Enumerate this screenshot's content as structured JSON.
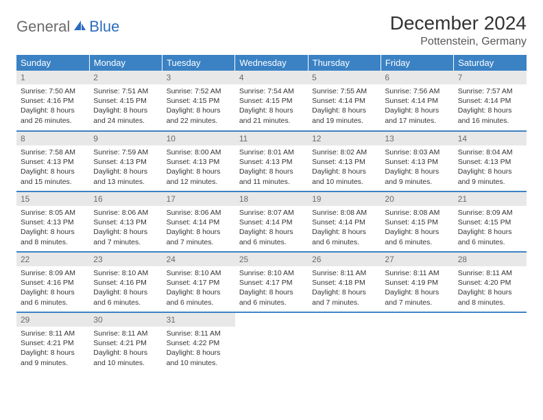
{
  "brand": {
    "part1": "General",
    "part2": "Blue"
  },
  "title": "December 2024",
  "location": "Pottenstein, Germany",
  "colors": {
    "header_bg": "#3b82c4",
    "header_fg": "#ffffff",
    "daynum_bg": "#e8e8e8",
    "daynum_fg": "#6a6a6a",
    "row_border": "#3b82c4",
    "logo_gray": "#6a6a6a",
    "logo_blue": "#2b6bbf"
  },
  "weekdays": [
    "Sunday",
    "Monday",
    "Tuesday",
    "Wednesday",
    "Thursday",
    "Friday",
    "Saturday"
  ],
  "days": [
    {
      "n": 1,
      "sunrise": "7:50 AM",
      "sunset": "4:16 PM",
      "daylight": "8 hours and 26 minutes."
    },
    {
      "n": 2,
      "sunrise": "7:51 AM",
      "sunset": "4:15 PM",
      "daylight": "8 hours and 24 minutes."
    },
    {
      "n": 3,
      "sunrise": "7:52 AM",
      "sunset": "4:15 PM",
      "daylight": "8 hours and 22 minutes."
    },
    {
      "n": 4,
      "sunrise": "7:54 AM",
      "sunset": "4:15 PM",
      "daylight": "8 hours and 21 minutes."
    },
    {
      "n": 5,
      "sunrise": "7:55 AM",
      "sunset": "4:14 PM",
      "daylight": "8 hours and 19 minutes."
    },
    {
      "n": 6,
      "sunrise": "7:56 AM",
      "sunset": "4:14 PM",
      "daylight": "8 hours and 17 minutes."
    },
    {
      "n": 7,
      "sunrise": "7:57 AM",
      "sunset": "4:14 PM",
      "daylight": "8 hours and 16 minutes."
    },
    {
      "n": 8,
      "sunrise": "7:58 AM",
      "sunset": "4:13 PM",
      "daylight": "8 hours and 15 minutes."
    },
    {
      "n": 9,
      "sunrise": "7:59 AM",
      "sunset": "4:13 PM",
      "daylight": "8 hours and 13 minutes."
    },
    {
      "n": 10,
      "sunrise": "8:00 AM",
      "sunset": "4:13 PM",
      "daylight": "8 hours and 12 minutes."
    },
    {
      "n": 11,
      "sunrise": "8:01 AM",
      "sunset": "4:13 PM",
      "daylight": "8 hours and 11 minutes."
    },
    {
      "n": 12,
      "sunrise": "8:02 AM",
      "sunset": "4:13 PM",
      "daylight": "8 hours and 10 minutes."
    },
    {
      "n": 13,
      "sunrise": "8:03 AM",
      "sunset": "4:13 PM",
      "daylight": "8 hours and 9 minutes."
    },
    {
      "n": 14,
      "sunrise": "8:04 AM",
      "sunset": "4:13 PM",
      "daylight": "8 hours and 9 minutes."
    },
    {
      "n": 15,
      "sunrise": "8:05 AM",
      "sunset": "4:13 PM",
      "daylight": "8 hours and 8 minutes."
    },
    {
      "n": 16,
      "sunrise": "8:06 AM",
      "sunset": "4:13 PM",
      "daylight": "8 hours and 7 minutes."
    },
    {
      "n": 17,
      "sunrise": "8:06 AM",
      "sunset": "4:14 PM",
      "daylight": "8 hours and 7 minutes."
    },
    {
      "n": 18,
      "sunrise": "8:07 AM",
      "sunset": "4:14 PM",
      "daylight": "8 hours and 6 minutes."
    },
    {
      "n": 19,
      "sunrise": "8:08 AM",
      "sunset": "4:14 PM",
      "daylight": "8 hours and 6 minutes."
    },
    {
      "n": 20,
      "sunrise": "8:08 AM",
      "sunset": "4:15 PM",
      "daylight": "8 hours and 6 minutes."
    },
    {
      "n": 21,
      "sunrise": "8:09 AM",
      "sunset": "4:15 PM",
      "daylight": "8 hours and 6 minutes."
    },
    {
      "n": 22,
      "sunrise": "8:09 AM",
      "sunset": "4:16 PM",
      "daylight": "8 hours and 6 minutes."
    },
    {
      "n": 23,
      "sunrise": "8:10 AM",
      "sunset": "4:16 PM",
      "daylight": "8 hours and 6 minutes."
    },
    {
      "n": 24,
      "sunrise": "8:10 AM",
      "sunset": "4:17 PM",
      "daylight": "8 hours and 6 minutes."
    },
    {
      "n": 25,
      "sunrise": "8:10 AM",
      "sunset": "4:17 PM",
      "daylight": "8 hours and 6 minutes."
    },
    {
      "n": 26,
      "sunrise": "8:11 AM",
      "sunset": "4:18 PM",
      "daylight": "8 hours and 7 minutes."
    },
    {
      "n": 27,
      "sunrise": "8:11 AM",
      "sunset": "4:19 PM",
      "daylight": "8 hours and 7 minutes."
    },
    {
      "n": 28,
      "sunrise": "8:11 AM",
      "sunset": "4:20 PM",
      "daylight": "8 hours and 8 minutes."
    },
    {
      "n": 29,
      "sunrise": "8:11 AM",
      "sunset": "4:21 PM",
      "daylight": "8 hours and 9 minutes."
    },
    {
      "n": 30,
      "sunrise": "8:11 AM",
      "sunset": "4:21 PM",
      "daylight": "8 hours and 10 minutes."
    },
    {
      "n": 31,
      "sunrise": "8:11 AM",
      "sunset": "4:22 PM",
      "daylight": "8 hours and 10 minutes."
    }
  ],
  "labels": {
    "sunrise": "Sunrise:",
    "sunset": "Sunset:",
    "daylight": "Daylight:"
  }
}
